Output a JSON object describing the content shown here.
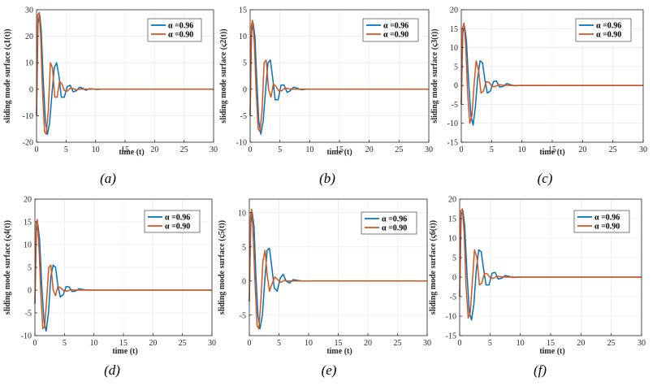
{
  "chart_data": [
    {
      "type": "line",
      "panel_label": "(a)",
      "xlabel": "time (t)",
      "ylabel": "sliding mode surface (ς1(t))",
      "xlim": [
        0,
        30
      ],
      "ylim": [
        -20,
        30
      ],
      "xticks": [
        0,
        5,
        10,
        15,
        20,
        25,
        30
      ],
      "yticks": [
        -20,
        -10,
        0,
        10,
        20,
        30
      ],
      "legend": "top-right",
      "grid": true,
      "series": [
        {
          "name": "α =0.96",
          "color": "#0072BD",
          "x": [
            0,
            0.25,
            0.55,
            0.8,
            1.1,
            1.5,
            1.85,
            2.2,
            2.6,
            3.0,
            3.4,
            3.8,
            4.2,
            4.7,
            5.2,
            5.7,
            6.2,
            6.8,
            7.3,
            7.8,
            8.4,
            9.0,
            9.6,
            10.2,
            11,
            12,
            30
          ],
          "y": [
            -10,
            25,
            28,
            22,
            5,
            -12,
            -17,
            -13,
            -2,
            8,
            10,
            5,
            -3,
            -3,
            1,
            1.5,
            -1,
            -0.5,
            0.8,
            0.4,
            -0.4,
            0.2,
            0.1,
            -0.1,
            0,
            0,
            0
          ]
        },
        {
          "name": "α =0.90",
          "color": "#D95319",
          "x": [
            0,
            0.2,
            0.45,
            0.7,
            1.0,
            1.35,
            1.65,
            2.0,
            2.35,
            2.7,
            3.1,
            3.5,
            3.9,
            4.3,
            4.7,
            5.2,
            5.7,
            6.2,
            6.8,
            7.4,
            8,
            9,
            30
          ],
          "y": [
            -10,
            28,
            29,
            20,
            0,
            -16,
            -17,
            -8,
            10,
            8,
            -3,
            -3,
            3,
            2,
            -0.5,
            -0.8,
            0.4,
            0.2,
            -0.2,
            0.1,
            0,
            0,
            0
          ]
        }
      ]
    },
    {
      "type": "line",
      "panel_label": "(b)",
      "xlabel": "time (t)",
      "ylabel": "sliding mode surface (ς2(t))",
      "xlim": [
        0,
        30
      ],
      "ylim": [
        -10,
        15
      ],
      "xticks": [
        0,
        5,
        10,
        15,
        20,
        25,
        30
      ],
      "yticks": [
        -10,
        -5,
        0,
        5,
        10,
        15
      ],
      "legend": "top-right",
      "grid": true,
      "series": [
        {
          "name": "α =0.96",
          "color": "#0072BD",
          "x": [
            0,
            0.25,
            0.5,
            0.8,
            1.1,
            1.45,
            1.8,
            2.2,
            2.6,
            3.0,
            3.4,
            3.8,
            4.2,
            4.7,
            5.2,
            5.7,
            6.2,
            6.7,
            7.3,
            7.9,
            8.6,
            9.5,
            30
          ],
          "y": [
            -5,
            11,
            12.5,
            10,
            2,
            -6,
            -8.5,
            -6,
            0,
            5,
            5.5,
            2,
            -2,
            -2,
            0.8,
            0.8,
            -0.6,
            -0.3,
            0.4,
            0.2,
            -0.1,
            0,
            0
          ]
        },
        {
          "name": "α =0.90",
          "color": "#D95319",
          "x": [
            0,
            0.2,
            0.4,
            0.7,
            1.0,
            1.35,
            1.65,
            2.0,
            2.35,
            2.7,
            3.1,
            3.5,
            3.9,
            4.3,
            4.8,
            5.3,
            5.8,
            6.4,
            7,
            8,
            30
          ],
          "y": [
            -5,
            12,
            13,
            9,
            0,
            -7.5,
            -8,
            -4,
            5,
            5.5,
            0,
            -1.5,
            1,
            0.6,
            -0.3,
            -0.3,
            0.2,
            0.1,
            0,
            0,
            0
          ]
        }
      ]
    },
    {
      "type": "line",
      "panel_label": "(c)",
      "xlabel": "time (t)",
      "ylabel": "sliding mode surface (ς3(t))",
      "xlim": [
        0,
        30
      ],
      "ylim": [
        -15,
        20
      ],
      "xticks": [
        0,
        5,
        10,
        15,
        20,
        25,
        30
      ],
      "yticks": [
        -15,
        -10,
        -5,
        0,
        5,
        10,
        15,
        20
      ],
      "legend": "top-right",
      "grid": true,
      "series": [
        {
          "name": "α =0.96",
          "color": "#0072BD",
          "x": [
            0,
            0.25,
            0.55,
            0.85,
            1.2,
            1.6,
            1.95,
            2.3,
            2.7,
            3.1,
            3.5,
            3.9,
            4.3,
            4.8,
            5.3,
            5.8,
            6.3,
            6.9,
            7.5,
            8.1,
            8.8,
            9.6,
            10.5,
            30
          ],
          "y": [
            -5,
            14,
            15.5,
            12,
            1,
            -8,
            -10.5,
            -6,
            2,
            6.5,
            6,
            1.5,
            -2,
            -1.5,
            1,
            1.2,
            -0.4,
            -0.3,
            0.5,
            0.2,
            -0.1,
            0,
            0,
            0
          ]
        },
        {
          "name": "α =0.90",
          "color": "#D95319",
          "x": [
            0,
            0.2,
            0.45,
            0.75,
            1.05,
            1.4,
            1.75,
            2.1,
            2.45,
            2.85,
            3.25,
            3.65,
            4.1,
            4.6,
            5.1,
            5.6,
            6.2,
            6.8,
            7.5,
            8.5,
            30
          ],
          "y": [
            -5,
            15,
            16.5,
            10,
            -2,
            -10,
            -8,
            0,
            6.5,
            4,
            -2,
            -1.5,
            1,
            0.8,
            -0.3,
            -0.3,
            0.2,
            0.1,
            0,
            0,
            0
          ]
        }
      ]
    },
    {
      "type": "line",
      "panel_label": "(d)",
      "xlabel": "time (t)",
      "ylabel": "sliding mode surface (ς4(t))",
      "xlim": [
        0,
        30
      ],
      "ylim": [
        -10,
        20
      ],
      "xticks": [
        0,
        5,
        10,
        15,
        20,
        25,
        30
      ],
      "yticks": [
        -10,
        -5,
        0,
        5,
        10,
        15,
        20
      ],
      "legend": "top-right",
      "grid": true,
      "series": [
        {
          "name": "α =0.96",
          "color": "#0072BD",
          "x": [
            0,
            0.25,
            0.5,
            0.8,
            1.15,
            1.55,
            1.9,
            2.3,
            2.7,
            3.1,
            3.5,
            3.9,
            4.3,
            4.8,
            5.3,
            5.8,
            6.3,
            6.9,
            7.5,
            8.2,
            9,
            30
          ],
          "y": [
            -3,
            13,
            14.5,
            11,
            1,
            -7,
            -9,
            -5,
            3,
            5.5,
            5,
            1,
            -1.5,
            -1,
            0.8,
            0.7,
            -0.3,
            -0.2,
            0.3,
            0.1,
            0,
            0
          ]
        },
        {
          "name": "α =0.90",
          "color": "#D95319",
          "x": [
            0,
            0.2,
            0.4,
            0.7,
            1.0,
            1.35,
            1.65,
            2.0,
            2.35,
            2.7,
            3.1,
            3.5,
            3.9,
            4.4,
            4.9,
            5.5,
            6.1,
            6.8,
            7.5,
            30
          ],
          "y": [
            -3,
            14.5,
            15.5,
            9,
            -1,
            -8.5,
            -8,
            -2,
            5,
            5.5,
            0,
            -1.2,
            0.8,
            0.5,
            -0.2,
            -0.2,
            0.1,
            0,
            0,
            0
          ]
        }
      ]
    },
    {
      "type": "line",
      "panel_label": "(e)",
      "xlabel": "time (t)",
      "ylabel": "sliding mode surface (ς5(t))",
      "xlim": [
        0,
        30
      ],
      "ylim": [
        -8,
        12
      ],
      "xticks": [
        0,
        5,
        10,
        15,
        20,
        25,
        30
      ],
      "yticks": [
        -5,
        0,
        5,
        10
      ],
      "legend": "top-right",
      "grid": true,
      "series": [
        {
          "name": "α =0.96",
          "color": "#0072BD",
          "x": [
            0,
            0.25,
            0.5,
            0.8,
            1.1,
            1.45,
            1.8,
            2.2,
            2.6,
            3.0,
            3.4,
            3.8,
            4.2,
            4.7,
            5.2,
            5.7,
            6.2,
            6.8,
            7.4,
            8.1,
            8.9,
            9.8,
            30
          ],
          "y": [
            -3,
            8.5,
            10,
            8,
            1,
            -5,
            -7,
            -5,
            0,
            4.5,
            4.8,
            2,
            -1,
            -1.5,
            0.4,
            1,
            0,
            -0.3,
            0.2,
            0.1,
            0,
            0,
            0
          ]
        },
        {
          "name": "α =0.90",
          "color": "#D95319",
          "x": [
            0,
            0.2,
            0.4,
            0.65,
            0.95,
            1.3,
            1.6,
            1.95,
            2.3,
            2.65,
            3.0,
            3.4,
            3.8,
            4.3,
            4.8,
            5.3,
            5.9,
            6.5,
            7.2,
            8,
            30
          ],
          "y": [
            -3,
            9.5,
            10.5,
            7,
            0,
            -6.5,
            -7,
            -3,
            3,
            4.5,
            1,
            -1.5,
            -0.5,
            0.6,
            0.2,
            -0.2,
            0.1,
            0,
            0,
            0,
            0
          ]
        }
      ]
    },
    {
      "type": "line",
      "panel_label": "(f)",
      "xlabel": "time (t)",
      "ylabel": "sliding mode surface (ς6(t))",
      "xlim": [
        0,
        30
      ],
      "ylim": [
        -15,
        20
      ],
      "xticks": [
        0,
        5,
        10,
        15,
        20,
        25,
        30
      ],
      "yticks": [
        -15,
        -10,
        -5,
        0,
        5,
        10,
        15,
        20
      ],
      "legend": "top-right",
      "grid": true,
      "series": [
        {
          "name": "α =0.96",
          "color": "#0072BD",
          "x": [
            0,
            0.25,
            0.55,
            0.85,
            1.2,
            1.6,
            1.95,
            2.35,
            2.75,
            3.15,
            3.55,
            3.95,
            4.35,
            4.85,
            5.35,
            5.85,
            6.35,
            6.9,
            7.5,
            8.1,
            8.8,
            9.6,
            10.5,
            30
          ],
          "y": [
            -5,
            16,
            17,
            13,
            1,
            -9,
            -11,
            -7,
            2,
            7,
            6.5,
            2,
            -2,
            -2,
            1,
            1.2,
            -0.5,
            -0.3,
            0.4,
            0.2,
            -0.1,
            0,
            0,
            0
          ]
        },
        {
          "name": "α =0.90",
          "color": "#D95319",
          "x": [
            0,
            0.2,
            0.45,
            0.75,
            1.05,
            1.4,
            1.75,
            2.1,
            2.45,
            2.85,
            3.25,
            3.65,
            4.1,
            4.6,
            5.1,
            5.6,
            6.2,
            6.8,
            7.5,
            8.5,
            30
          ],
          "y": [
            -5,
            17,
            17.5,
            11,
            -2,
            -10.5,
            -9,
            -1,
            7,
            5,
            -2,
            -1.5,
            1,
            0.8,
            -0.3,
            -0.3,
            0.2,
            0.1,
            0,
            0,
            0
          ]
        }
      ]
    }
  ]
}
